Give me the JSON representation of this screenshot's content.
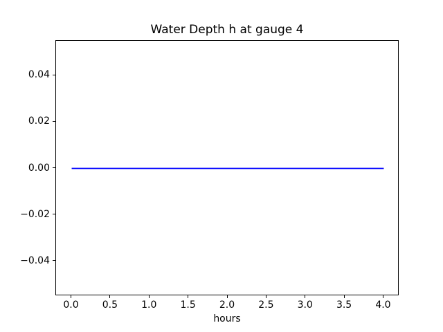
{
  "figure": {
    "background": "#ffffff",
    "text_color": "#000000",
    "axes_color": "#000000"
  },
  "chart_data": {
    "type": "line",
    "title": "Water Depth h at gauge 4",
    "xlabel": "hours",
    "ylabel": "",
    "xlim": [
      -0.2,
      4.2
    ],
    "ylim": [
      -0.055,
      0.055
    ],
    "grid": false,
    "legend": null,
    "x_ticks": {
      "values": [
        0.0,
        0.5,
        1.0,
        1.5,
        2.0,
        2.5,
        3.0,
        3.5,
        4.0
      ],
      "labels": [
        "0.0",
        "0.5",
        "1.0",
        "1.5",
        "2.0",
        "2.5",
        "3.0",
        "3.5",
        "4.0"
      ]
    },
    "y_ticks": {
      "values": [
        -0.04,
        -0.02,
        0.0,
        0.02,
        0.04
      ],
      "labels": [
        "−0.04",
        "−0.02",
        "0.00",
        "0.02",
        "0.04"
      ]
    },
    "series": [
      {
        "name": "water-depth-h",
        "color": "#0000ff",
        "linewidth": 1.8,
        "x": [
          0.0,
          4.0
        ],
        "y": [
          0.0,
          0.0
        ]
      }
    ]
  }
}
